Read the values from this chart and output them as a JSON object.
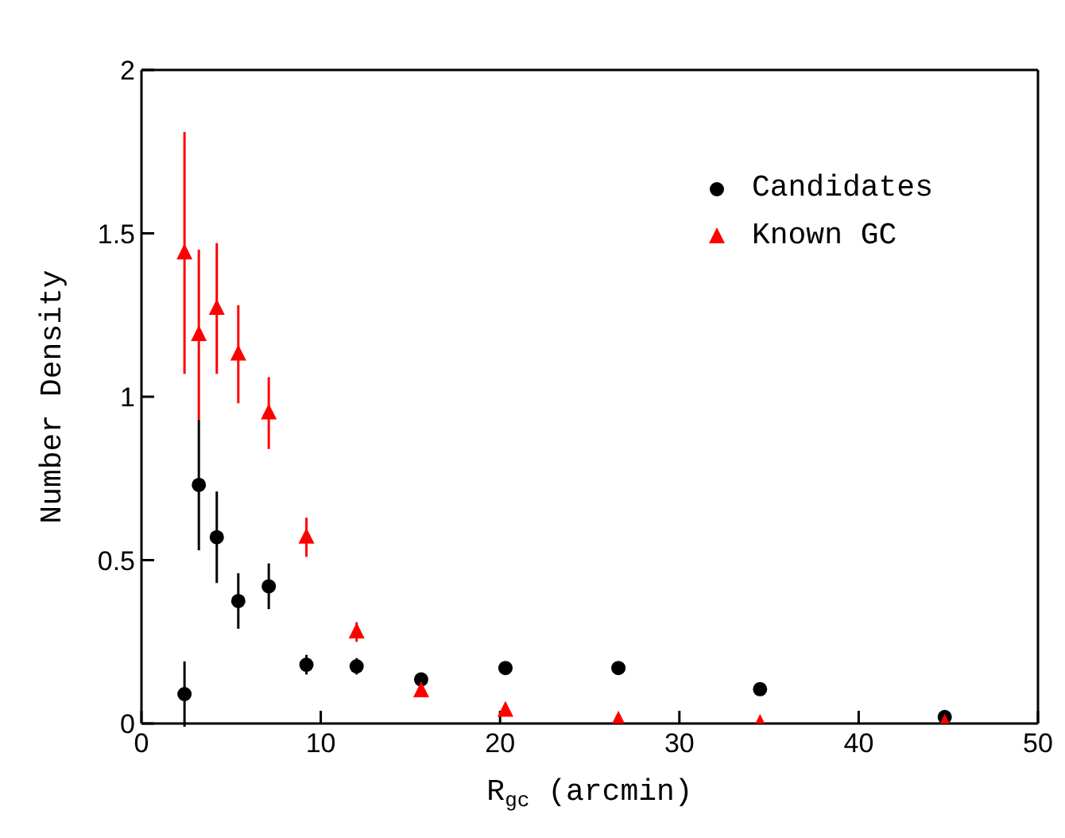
{
  "chart_data": {
    "type": "scatter",
    "xlabel": "R$_{gc}$ (arcmin)",
    "ylabel": "Number Density",
    "xlim": [
      0,
      50
    ],
    "xticks": [
      0,
      10,
      20,
      30,
      40,
      50
    ],
    "ylim": [
      0,
      2
    ],
    "yticks": [
      0,
      0.5,
      1,
      1.5,
      2
    ],
    "grid": false,
    "legend": "top right",
    "series": [
      {
        "name": "Candidates",
        "color": "#000000",
        "marker": "circle",
        "x": [
          2.4,
          3.2,
          4.2,
          5.4,
          7.1,
          9.2,
          12.0,
          15.6,
          20.3,
          26.6,
          34.5,
          44.8
        ],
        "values": [
          0.09,
          0.73,
          0.57,
          0.375,
          0.42,
          0.18,
          0.175,
          0.135,
          0.17,
          0.17,
          0.105,
          0.02
        ],
        "errors": [
          0.1,
          0.2,
          0.14,
          0.085,
          0.07,
          0.03,
          0.025,
          null,
          null,
          null,
          null,
          null
        ]
      },
      {
        "name": "Known GC",
        "color": "#ff0000",
        "marker": "triangle",
        "x": [
          2.4,
          3.2,
          4.2,
          5.4,
          7.1,
          9.2,
          12.0,
          15.6,
          20.3,
          26.6,
          34.5,
          44.8
        ],
        "values": [
          1.44,
          1.19,
          1.27,
          1.13,
          0.95,
          0.57,
          0.28,
          0.1,
          0.04,
          0.01,
          0.0,
          0.0
        ],
        "errors": [
          0.37,
          0.26,
          0.2,
          0.15,
          0.11,
          0.06,
          0.03,
          null,
          null,
          null,
          null,
          null
        ]
      }
    ]
  }
}
